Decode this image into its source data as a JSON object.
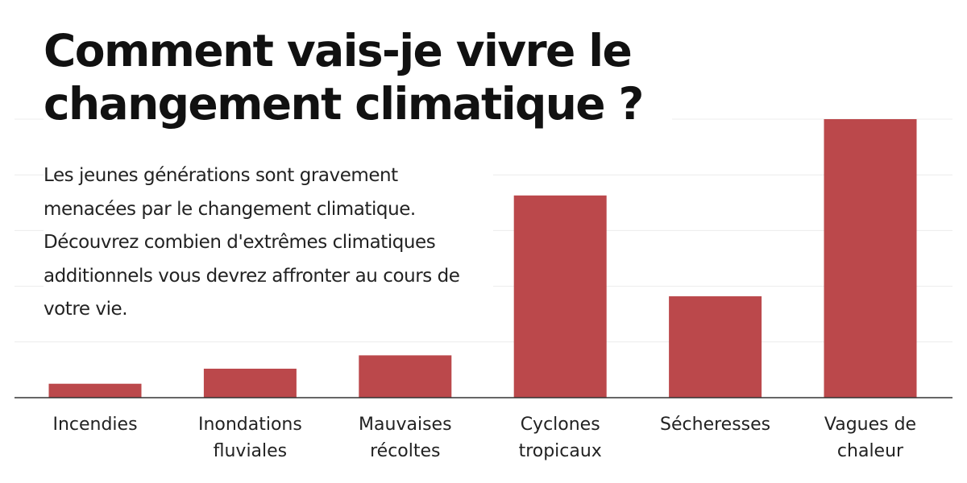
{
  "title": "Comment vais-je vivre le changement climatique ?",
  "subtitle": "Les jeunes générations sont gravement menacées par le changement climatique. Découvrez combien d'extrêmes climatiques additionnels vous devrez affronter au cours de votre vie.",
  "colors": {
    "bar": "#bb484b",
    "gridline": "#ececec",
    "baseline": "#333333",
    "text": "#222222"
  },
  "chart_data": {
    "type": "bar",
    "title": "Comment vais-je vivre le changement climatique ?",
    "xlabel": "",
    "ylabel": "",
    "grid": true,
    "ylim": [
      0,
      5
    ],
    "categories": [
      [
        "Incendies"
      ],
      [
        "Inondations",
        "fluviales"
      ],
      [
        "Mauvaises",
        "récoltes"
      ],
      [
        "Cyclones",
        "tropicaux"
      ],
      [
        "Sécheresses"
      ],
      [
        "Vagues de",
        "chaleur"
      ]
    ],
    "values": [
      0.25,
      0.52,
      0.76,
      3.63,
      1.82,
      5.0
    ]
  }
}
